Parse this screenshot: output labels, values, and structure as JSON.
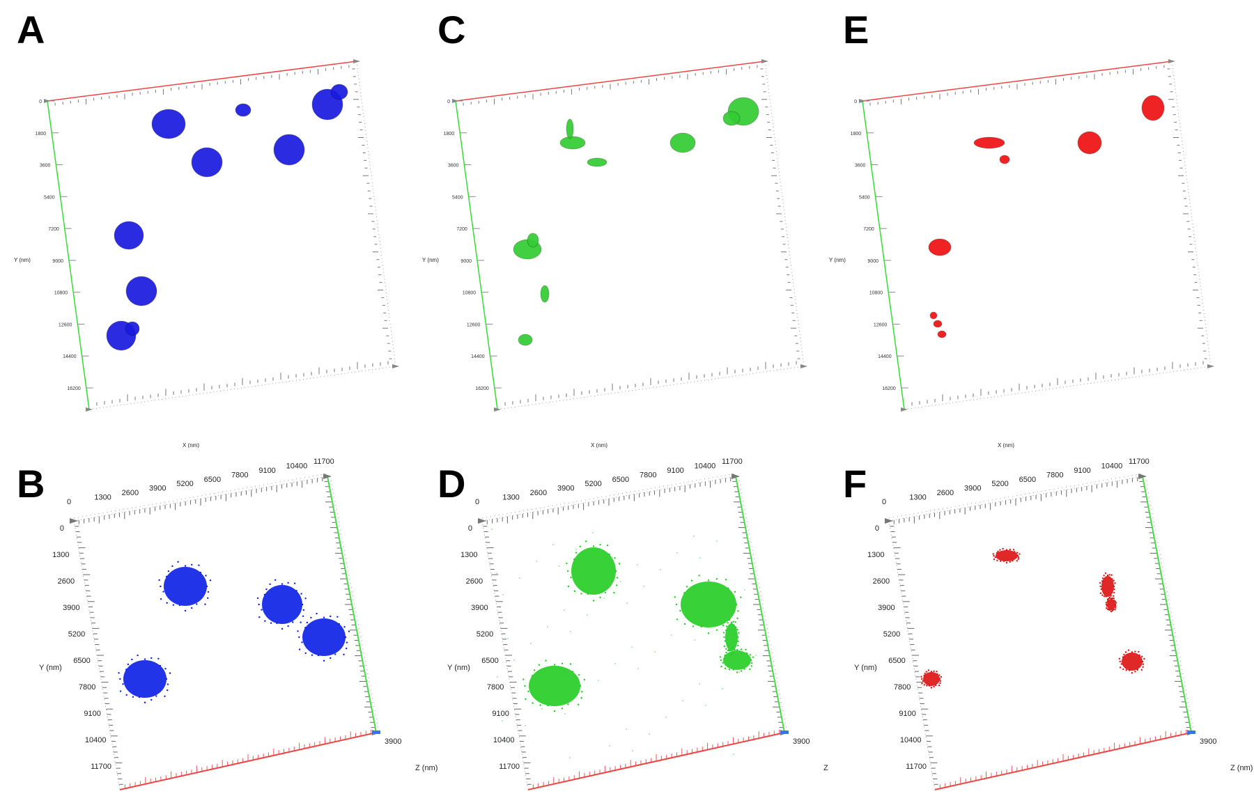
{
  "panels": [
    {
      "id": "A",
      "kind": "top",
      "color": "#1a1ae0",
      "y_ticks": [
        "0",
        "1800",
        "3600",
        "5400",
        "7200",
        "9000",
        "10800",
        "12600",
        "14400",
        "16200"
      ],
      "y_axis_label": "Y (nm)",
      "x_axis_label": "X (nm)"
    },
    {
      "id": "B",
      "kind": "bottom",
      "color": "#0a1ee6",
      "x_ticks": [
        "0",
        "1300",
        "2600",
        "3900",
        "5200",
        "6500",
        "7800",
        "9100",
        "10400",
        "11700"
      ],
      "y_ticks": [
        "0",
        "1300",
        "2600",
        "3900",
        "5200",
        "6500",
        "7800",
        "9100",
        "10400",
        "11700"
      ],
      "y_axis_label": "Y (nm)",
      "z_axis_label": "Z (nm)",
      "z_tick": "3900"
    },
    {
      "id": "C",
      "kind": "top",
      "color": "#33cc33",
      "y_ticks": [
        "0",
        "1800",
        "3600",
        "5400",
        "7200",
        "9000",
        "10800",
        "12600",
        "14400",
        "16200"
      ],
      "y_axis_label": "Y (nm)",
      "x_axis_label": "X (nm)"
    },
    {
      "id": "D",
      "kind": "bottom",
      "color": "#22cc22",
      "x_ticks": [
        "0",
        "1300",
        "2600",
        "3900",
        "5200",
        "6500",
        "7800",
        "9100",
        "10400",
        "11700"
      ],
      "y_ticks": [
        "0",
        "1300",
        "2600",
        "3900",
        "5200",
        "6500",
        "7800",
        "9100",
        "10400",
        "11700"
      ],
      "y_axis_label": "Y (nm)",
      "z_axis_label": "Z",
      "z_tick": "3900"
    },
    {
      "id": "E",
      "kind": "top",
      "color": "#ee1111",
      "y_ticks": [
        "0",
        "1800",
        "3600",
        "5400",
        "7200",
        "9000",
        "10800",
        "12600",
        "14400",
        "16200"
      ],
      "y_axis_label": "Y (nm)",
      "x_axis_label": "X (nm)"
    },
    {
      "id": "F",
      "kind": "bottom",
      "color": "#dd1111",
      "x_ticks": [
        "0",
        "1300",
        "2600",
        "3900",
        "5200",
        "6500",
        "7800",
        "9100",
        "10400",
        "11700"
      ],
      "y_ticks": [
        "0",
        "1300",
        "2600",
        "3900",
        "5200",
        "6500",
        "7800",
        "9100",
        "10400",
        "11700"
      ],
      "y_axis_label": "Y (nm)",
      "z_axis_label": "Z (nm)",
      "z_tick": "3900"
    }
  ]
}
